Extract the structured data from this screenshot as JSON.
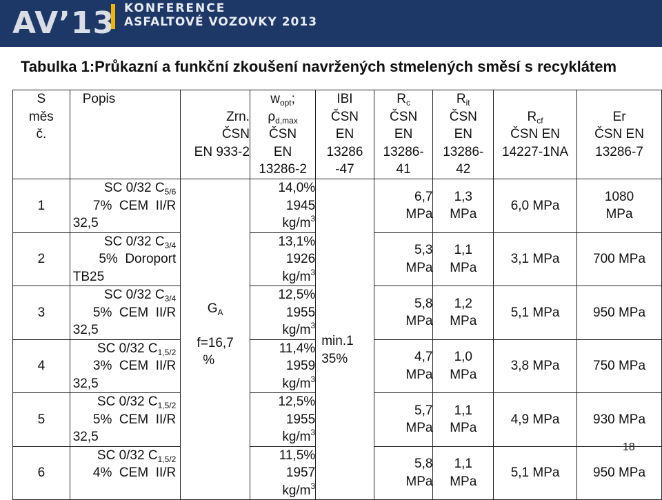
{
  "header": {
    "logo": "AV’13",
    "conference_line1": "KONFERENCE",
    "conference_line2": "ASFALTOVÉ VOZOVKY 2013"
  },
  "title": "Tabulka 1:Průkazní a funkční zkoušení navržených stmelených směsí s recyklátem",
  "columns": {
    "smes": [
      "S",
      "měs",
      "č."
    ],
    "popis": "Popis",
    "zrn": [
      "Zrn.",
      "ČSN",
      "EN 933-2"
    ],
    "wopt": {
      "w": "w",
      "w_sub": "opt",
      "semi": ";",
      "rho": "ρ",
      "rho_sub": "d,max",
      "lines": [
        "ČSN",
        "EN",
        "13286-2"
      ]
    },
    "ibi": [
      "IBI",
      "ČSN",
      "EN",
      "13286",
      "-47"
    ],
    "rc": {
      "sym": "R",
      "sub": "c",
      "lines": [
        "ČSN",
        "EN",
        "13286-",
        "41"
      ]
    },
    "rit": {
      "sym": "R",
      "sub": "it",
      "lines": [
        "ČSN",
        "EN",
        "13286-",
        "42"
      ]
    },
    "rcf": {
      "sym": "R",
      "sub": "cf",
      "lines": [
        "ČSN EN",
        "14227-1NA"
      ]
    },
    "er": {
      "sym": "Er",
      "lines": [
        "ČSN EN",
        "13286-7"
      ]
    }
  },
  "zrn_merged": {
    "g": "G",
    "g_sub": "A",
    "f": "f=16,7",
    "pct": "%"
  },
  "ibi_merged": [
    "min.1",
    "35%"
  ],
  "unit_density": "kg/m",
  "unit_density_sup": "3",
  "rows": [
    {
      "n": "1",
      "sc": "SC 0/32 C",
      "sc_sub": "5/6",
      "d2": "7%  CEM  II/R",
      "d3": "32,5",
      "w": "14,0%",
      "rho": "1945",
      "rc": [
        "6,7",
        "MPa"
      ],
      "rit": [
        "1,3",
        "MPa"
      ],
      "rcf": "6,0 MPa",
      "er": [
        "1080",
        "MPa"
      ]
    },
    {
      "n": "2",
      "sc": "SC 0/32 C",
      "sc_sub": "3/4",
      "d2": "5%  Doroport",
      "d3": "TB25",
      "w": "13,1%",
      "rho": "1926",
      "rc": [
        "5,3",
        "MPa"
      ],
      "rit": [
        "1,1",
        "MPa"
      ],
      "rcf": "3,1 MPa",
      "er": [
        "700 MPa"
      ]
    },
    {
      "n": "3",
      "sc": "SC 0/32 C",
      "sc_sub": "3/4",
      "d2": "5%  CEM  II/R",
      "d3": "32,5",
      "w": "12,5%",
      "rho": "1955",
      "rc": [
        "5,8",
        "MPa"
      ],
      "rit": [
        "1,2",
        "MPa"
      ],
      "rcf": "5,1 MPa",
      "er": [
        "950 MPa"
      ]
    },
    {
      "n": "4",
      "sc": "SC 0/32 C",
      "sc_sub": "1,5/2",
      "d2": "3%  CEM  II/R",
      "d3": "32,5",
      "w": "11,4%",
      "rho": "1959",
      "rc": [
        "4,7",
        "MPa"
      ],
      "rit": [
        "1,0",
        "MPa"
      ],
      "rcf": "3,8 MPa",
      "er": [
        "750 MPa"
      ]
    },
    {
      "n": "5",
      "sc": "SC 0/32 C",
      "sc_sub": "1,5/2",
      "d2": "5%  CEM  II/R",
      "d3": "32,5",
      "w": "12,5%",
      "rho": "1955",
      "rc": [
        "5,7",
        "MPa"
      ],
      "rit": [
        "1,1",
        "MPa"
      ],
      "rcf": "4,9 MPa",
      "er": [
        "930 MPa"
      ]
    },
    {
      "n": "6",
      "sc": "SC 0/32 C",
      "sc_sub": "1,5/2",
      "d2": "4%  CEM  II/R",
      "d3": "",
      "w": "11,5%",
      "rho": "1957",
      "rc": [
        "5,8",
        "MPa"
      ],
      "rit": [
        "1,1",
        "MPa"
      ],
      "rcf": "5,1 MPa",
      "er": [
        "950 MPa"
      ]
    }
  ],
  "page_number": "18"
}
